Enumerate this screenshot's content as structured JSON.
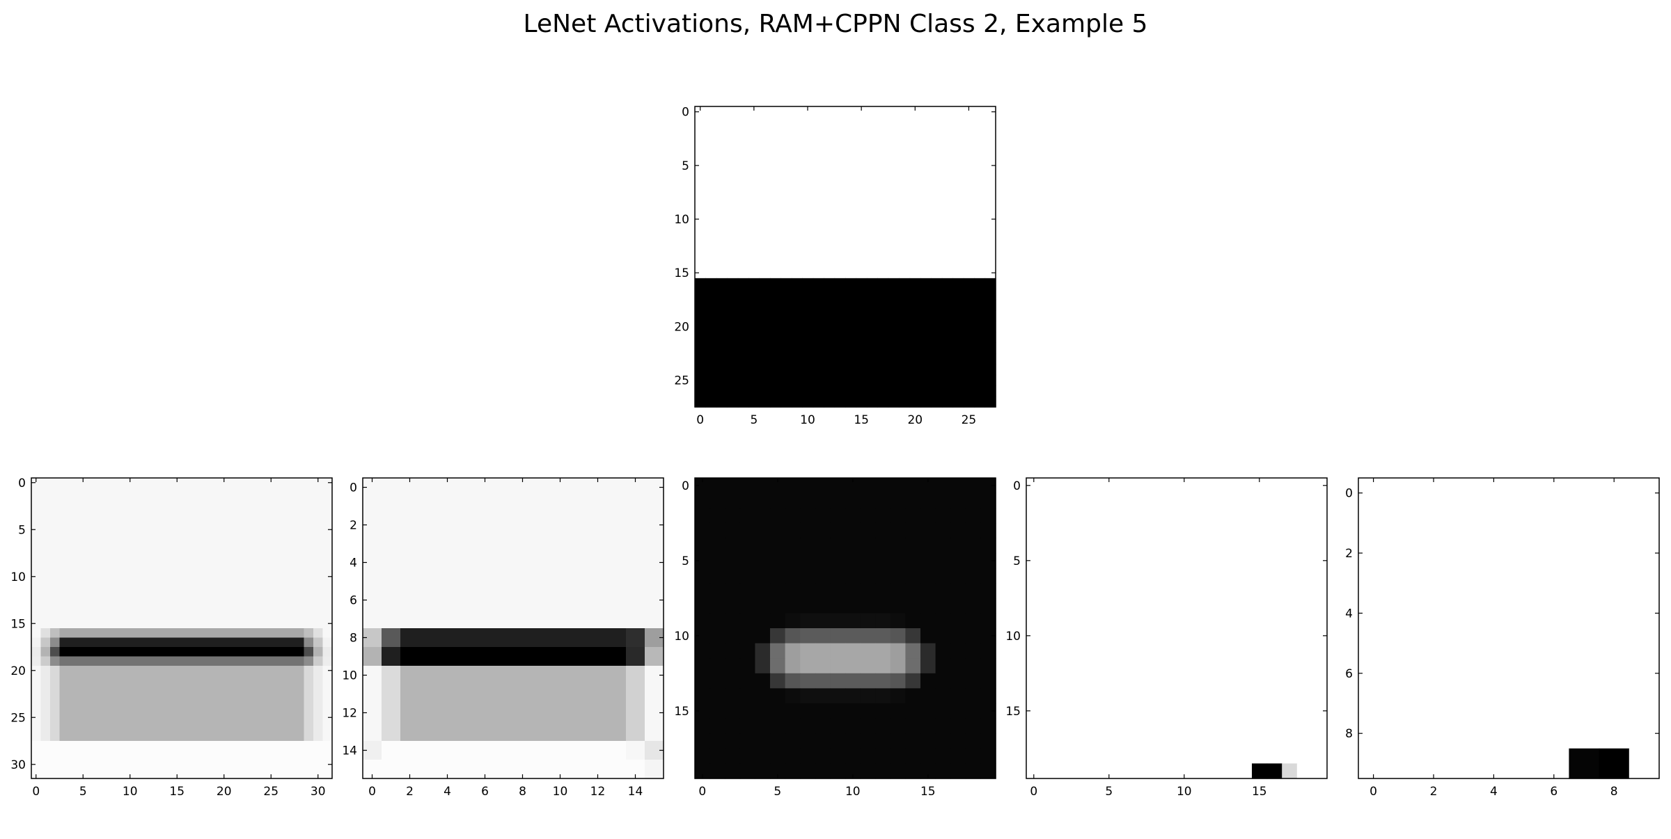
{
  "figure": {
    "title": "LeNet Activations, RAM+CPPN Class 2, Example 5"
  },
  "chart_data": [
    {
      "type": "heatmap",
      "colormap": "gray",
      "rows": 28,
      "cols": 28,
      "xticks": [
        0,
        5,
        10,
        15,
        20,
        25
      ],
      "yticks": [
        0,
        5,
        10,
        15,
        20,
        25
      ],
      "pattern": {
        "kind": "split",
        "split_row": 16,
        "top": 1.0,
        "bottom": 0.0
      }
    },
    {
      "type": "heatmap",
      "colormap": "gray",
      "rows": 32,
      "cols": 32,
      "xticks": [
        0,
        5,
        10,
        15,
        20,
        25,
        30
      ],
      "yticks": [
        0,
        5,
        10,
        15,
        20,
        25,
        30
      ],
      "pattern": {
        "kind": "rows",
        "col_edges": [
          0,
          1,
          2,
          3,
          4,
          28,
          29,
          30,
          31,
          32
        ],
        "row_bands": [
          {
            "from": 0,
            "to": 16,
            "levels": [
              0.97,
              0.97,
              0.97,
              0.97,
              0.97,
              0.97,
              0.97,
              0.97,
              0.97
            ]
          },
          {
            "from": 16,
            "to": 17,
            "levels": [
              0.97,
              0.88,
              0.75,
              0.66,
              0.66,
              0.66,
              0.75,
              0.88,
              0.97
            ]
          },
          {
            "from": 17,
            "to": 18,
            "levels": [
              0.95,
              0.78,
              0.55,
              0.12,
              0.12,
              0.12,
              0.55,
              0.78,
              0.95
            ]
          },
          {
            "from": 18,
            "to": 19,
            "levels": [
              0.92,
              0.7,
              0.3,
              0.0,
              0.0,
              0.0,
              0.3,
              0.7,
              0.92
            ]
          },
          {
            "from": 19,
            "to": 20,
            "levels": [
              0.93,
              0.8,
              0.55,
              0.45,
              0.45,
              0.45,
              0.55,
              0.8,
              0.93
            ]
          },
          {
            "from": 20,
            "to": 28,
            "levels": [
              0.97,
              0.92,
              0.85,
              0.71,
              0.71,
              0.71,
              0.85,
              0.92,
              0.97
            ]
          },
          {
            "from": 28,
            "to": 32,
            "levels": [
              0.99,
              0.99,
              0.99,
              0.99,
              0.99,
              0.99,
              0.99,
              0.99,
              0.99
            ]
          }
        ]
      },
      "ylim": [
        -0.5,
        31.5
      ]
    },
    {
      "type": "heatmap",
      "colormap": "gray",
      "rows": 16,
      "cols": 16,
      "xticks": [
        0,
        2,
        4,
        6,
        8,
        10,
        12,
        14
      ],
      "yticks": [
        0,
        2,
        4,
        6,
        8,
        10,
        12,
        14
      ],
      "pattern": {
        "kind": "rows",
        "col_edges": [
          0,
          1,
          2,
          14,
          15,
          16
        ],
        "row_bands": [
          {
            "from": 0,
            "to": 8,
            "levels": [
              0.97,
              0.97,
              0.97,
              0.97,
              0.97
            ]
          },
          {
            "from": 8,
            "to": 9,
            "levels": [
              0.78,
              0.35,
              0.12,
              0.18,
              0.62
            ]
          },
          {
            "from": 9,
            "to": 10,
            "levels": [
              0.7,
              0.12,
              0.0,
              0.16,
              0.72
            ]
          },
          {
            "from": 10,
            "to": 14,
            "levels": [
              0.97,
              0.86,
              0.71,
              0.82,
              0.97
            ]
          },
          {
            "from": 14,
            "to": 15,
            "levels": [
              0.94,
              0.99,
              0.99,
              0.97,
              0.9
            ]
          },
          {
            "from": 15,
            "to": 16,
            "levels": [
              0.99,
              0.99,
              0.99,
              0.99,
              0.96
            ]
          }
        ]
      }
    },
    {
      "type": "heatmap",
      "colormap": "gray",
      "rows": 20,
      "cols": 20,
      "xticks": [
        0,
        5,
        10,
        15
      ],
      "yticks": [
        0,
        5,
        10,
        15
      ],
      "pattern": {
        "kind": "blob",
        "background": 0.03,
        "center_row": 11.5,
        "center_col": 9.5,
        "half_width": 6.2,
        "half_height": 2.6,
        "falloff": 3.2,
        "peak": 0.98
      }
    },
    {
      "type": "heatmap",
      "colormap": "gray",
      "rows": 20,
      "cols": 20,
      "xticks": [
        0,
        5,
        10,
        15
      ],
      "yticks": [
        0,
        5,
        10,
        15
      ],
      "pattern": {
        "kind": "cells",
        "background": 1.0,
        "cells": [
          {
            "r": 19,
            "c": 15,
            "v": 0.0
          },
          {
            "r": 19,
            "c": 16,
            "v": 0.0
          },
          {
            "r": 19,
            "c": 17,
            "v": 0.85
          }
        ]
      }
    },
    {
      "type": "heatmap",
      "colormap": "gray",
      "rows": 10,
      "cols": 10,
      "xticks": [
        0,
        2,
        4,
        6,
        8
      ],
      "yticks": [
        0,
        2,
        4,
        6,
        8
      ],
      "pattern": {
        "kind": "cells",
        "background": 1.0,
        "cells": [
          {
            "r": 9,
            "c": 7,
            "v": 0.02
          },
          {
            "r": 9,
            "c": 8,
            "v": 0.0
          }
        ]
      }
    }
  ]
}
